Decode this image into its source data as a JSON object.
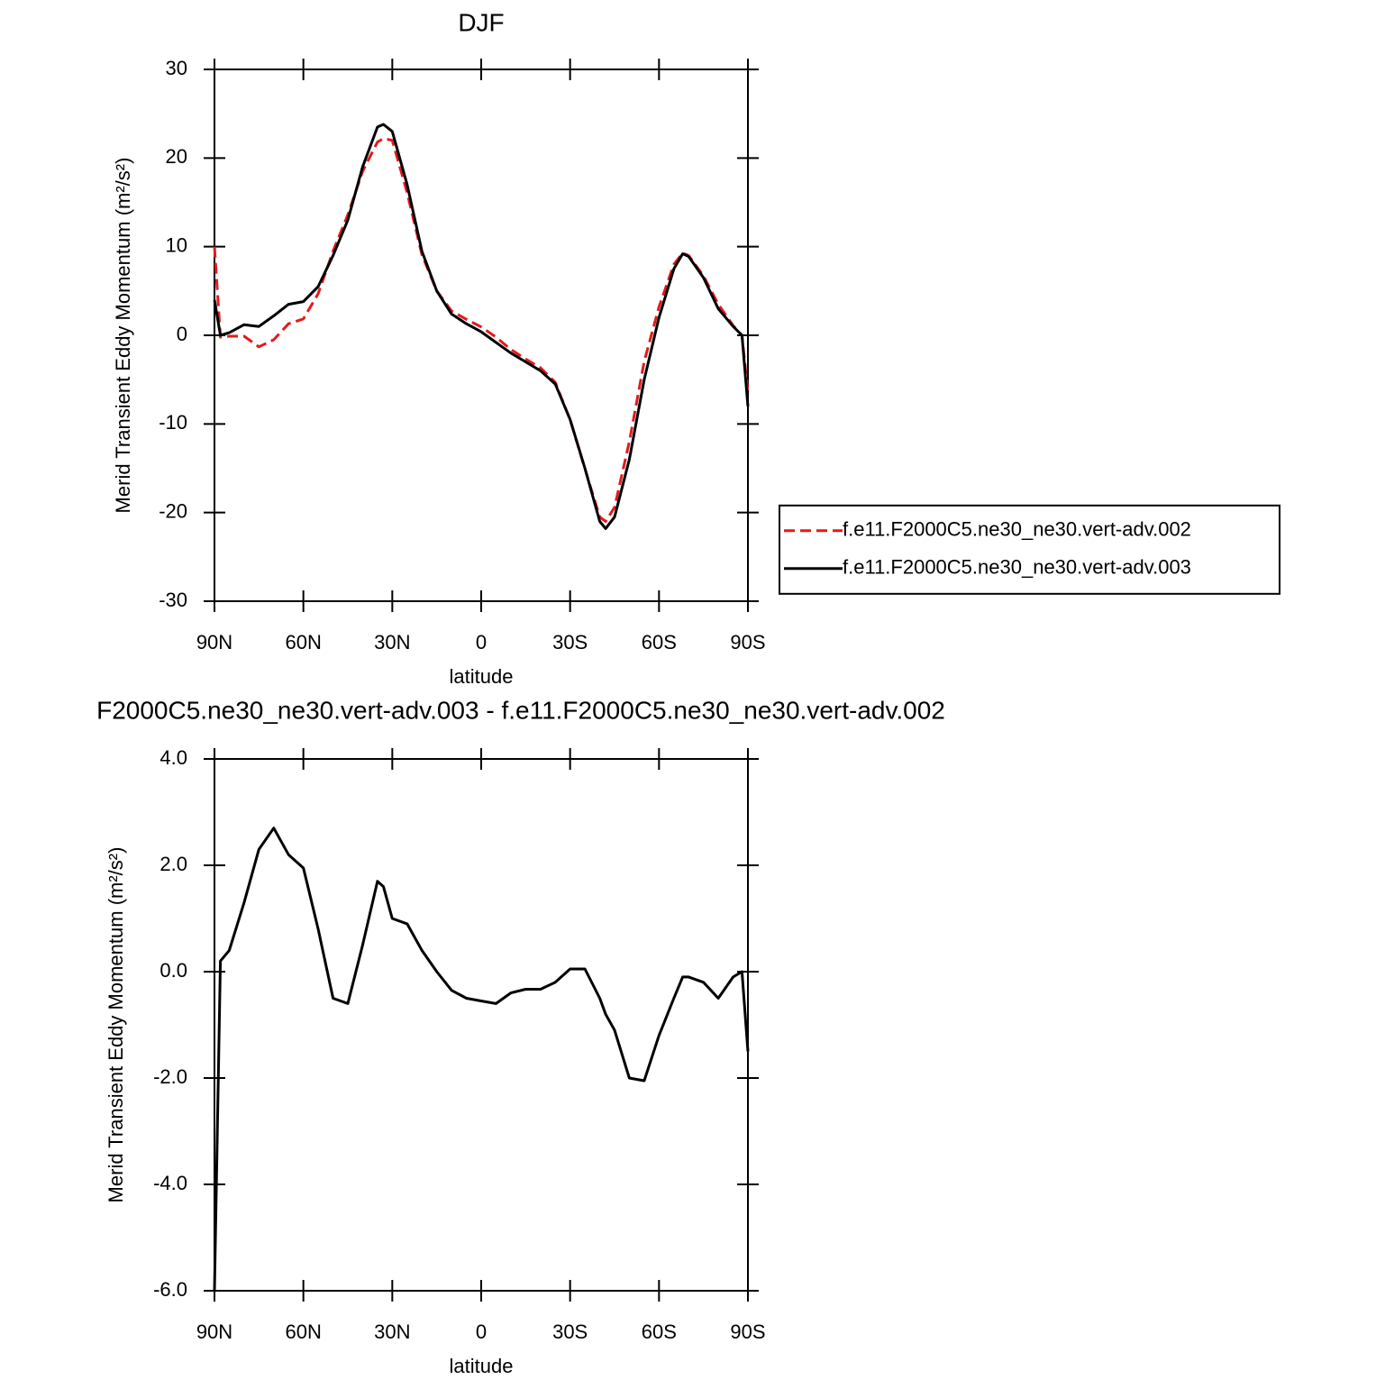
{
  "chart_data": [
    {
      "type": "line",
      "title": "DJF",
      "xlabel": "latitude",
      "ylabel": "Merid Transient Eddy Momentum (m²/s²)",
      "x": [
        90,
        88,
        85,
        80,
        75,
        70,
        65,
        60,
        55,
        50,
        45,
        40,
        35,
        33,
        30,
        25,
        20,
        15,
        10,
        5,
        0,
        -5,
        -10,
        -15,
        -20,
        -25,
        -30,
        -35,
        -40,
        -42,
        -45,
        -50,
        -55,
        -60,
        -65,
        -68,
        -70,
        -75,
        -80,
        -85,
        -88,
        -90
      ],
      "series": [
        {
          "name": "f.e11.F2000C5.ne30_ne30.vert-adv.002",
          "color": "#e41a1c",
          "dash": true,
          "values": [
            10,
            -0.2,
            -0.1,
            -0.1,
            -1.3,
            -0.5,
            1.3,
            1.85,
            4.7,
            9.5,
            13.6,
            18.5,
            21.8,
            22.2,
            22,
            16.1,
            9.1,
            5,
            2.75,
            1.8,
            0.95,
            -0.2,
            -1.6,
            -2.67,
            -3.67,
            -5.3,
            -9.55,
            -15.05,
            -20.5,
            -21,
            -19.4,
            -12,
            -2.95,
            3.2,
            8,
            9.3,
            9,
            6.7,
            3.5,
            1.1,
            0,
            -6.5
          ]
        },
        {
          "name": "f.e11.F2000C5.ne30_ne30.vert-adv.003",
          "color": "#000000",
          "dash": false,
          "values": [
            4,
            0,
            0.3,
            1.2,
            1,
            2.2,
            3.5,
            3.8,
            5.5,
            9,
            13,
            19,
            23.5,
            23.8,
            23,
            17,
            9.5,
            5,
            2.4,
            1.3,
            0.4,
            -0.8,
            -2,
            -3,
            -4,
            -5.5,
            -9.5,
            -15,
            -21,
            -21.8,
            -20.5,
            -14,
            -5,
            2,
            7.5,
            9.2,
            8.9,
            6.5,
            3,
            1,
            0,
            -8
          ]
        }
      ],
      "xlim": [
        90,
        -90
      ],
      "xticks": [
        {
          "value": 90,
          "label": "90N"
        },
        {
          "value": 60,
          "label": "60N"
        },
        {
          "value": 30,
          "label": "30N"
        },
        0,
        {
          "value": -30,
          "label": "30S"
        },
        {
          "value": -60,
          "label": "60S"
        },
        {
          "value": -90,
          "label": "90S"
        }
      ],
      "ylim": [
        -30,
        30
      ],
      "yticks": [
        -30,
        -20,
        -10,
        0,
        10,
        20,
        30
      ],
      "legend": "right"
    },
    {
      "type": "line",
      "title": "F2000C5.ne30_ne30.vert-adv.003 - f.e11.F2000C5.ne30_ne30.vert-adv.002",
      "xlabel": "latitude",
      "ylabel": "Merid Transient Eddy Momentum (m²/s²)",
      "x": [
        90,
        88,
        85,
        80,
        75,
        70,
        65,
        60,
        55,
        50,
        45,
        40,
        35,
        33,
        30,
        25,
        20,
        15,
        10,
        5,
        0,
        -5,
        -10,
        -15,
        -20,
        -25,
        -30,
        -35,
        -40,
        -42,
        -45,
        -50,
        -55,
        -60,
        -65,
        -68,
        -70,
        -75,
        -80,
        -85,
        -88,
        -90
      ],
      "series": [
        {
          "color": "#000000",
          "dash": false,
          "values": [
            -6,
            0.2,
            0.4,
            1.3,
            2.3,
            2.7,
            2.2,
            1.95,
            0.8,
            -0.5,
            -0.6,
            0.5,
            1.7,
            1.6,
            1,
            0.9,
            0.4,
            0,
            -0.35,
            -0.5,
            -0.55,
            -0.6,
            -0.4,
            -0.33,
            -0.33,
            -0.2,
            0.05,
            0.05,
            -0.5,
            -0.8,
            -1.1,
            -2,
            -2.05,
            -1.2,
            -0.5,
            -0.1,
            -0.1,
            -0.2,
            -0.5,
            -0.1,
            0,
            -1.5
          ]
        }
      ],
      "xlim": [
        90,
        -90
      ],
      "xticks": [
        {
          "value": 90,
          "label": "90N"
        },
        {
          "value": 60,
          "label": "60N"
        },
        {
          "value": 30,
          "label": "30N"
        },
        0,
        {
          "value": -30,
          "label": "30S"
        },
        {
          "value": -60,
          "label": "60S"
        },
        {
          "value": -90,
          "label": "90S"
        }
      ],
      "ylim": [
        -6,
        4
      ],
      "yticks": [
        {
          "value": -6,
          "label": "-6.0"
        },
        {
          "value": -4,
          "label": "-4.0"
        },
        {
          "value": -2,
          "label": "-2.0"
        },
        {
          "value": 0,
          "label": "0.0"
        },
        {
          "value": 2,
          "label": "2.0"
        },
        {
          "value": 4,
          "label": "4.0"
        }
      ]
    }
  ]
}
